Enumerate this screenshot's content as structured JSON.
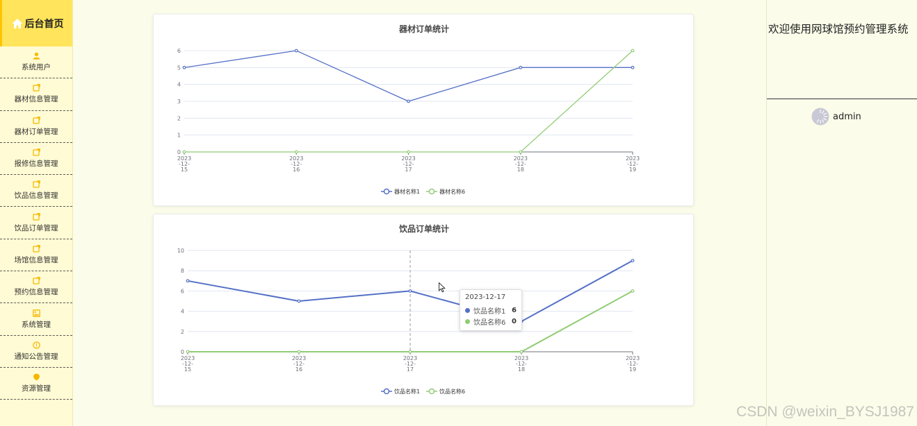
{
  "sidebar": {
    "home_label": "后台首页",
    "items": [
      {
        "label": "系统用户",
        "icon": "user-icon"
      },
      {
        "label": "器材信息管理",
        "icon": "edit-icon"
      },
      {
        "label": "器材订单管理",
        "icon": "edit-icon"
      },
      {
        "label": "报修信息管理",
        "icon": "edit-icon"
      },
      {
        "label": "饮品信息管理",
        "icon": "edit-icon"
      },
      {
        "label": "饮品订单管理",
        "icon": "edit-icon"
      },
      {
        "label": "场馆信息管理",
        "icon": "edit-icon"
      },
      {
        "label": "预约信息管理",
        "icon": "edit-icon"
      },
      {
        "label": "系统管理",
        "icon": "picture-icon"
      },
      {
        "label": "通知公告管理",
        "icon": "info-icon"
      },
      {
        "label": "资源管理",
        "icon": "location-icon"
      }
    ]
  },
  "right_panel": {
    "welcome": "欢迎使用网球馆预约管理系统",
    "username": "admin"
  },
  "colors": {
    "series1": "#5470c6",
    "series2": "#91cc75",
    "sidebar_bg": "#fffbd4",
    "home_bg": "#ffe45c",
    "icon_accent": "#f5b800"
  },
  "tooltip": {
    "date": "2023-12-17",
    "rows": [
      {
        "name": "饮品名称1",
        "value": "6"
      },
      {
        "name": "饮品名称6",
        "value": "0"
      }
    ]
  },
  "watermark": "CSDN @weixin_BYSJ1987",
  "chart_data": [
    {
      "type": "line",
      "title": "器材订单统计",
      "categories": [
        "2023-12-15",
        "2023-12-16",
        "2023-12-17",
        "2023-12-18",
        "2023-12-19"
      ],
      "series": [
        {
          "name": "器材名称1",
          "values": [
            5,
            6,
            3,
            5,
            5
          ]
        },
        {
          "name": "器材名称6",
          "values": [
            0,
            0,
            0,
            0,
            6
          ]
        }
      ],
      "ylim": [
        0,
        6
      ],
      "yticks": [
        0,
        1,
        2,
        3,
        4,
        5,
        6
      ],
      "legend": "bottom",
      "grid": true
    },
    {
      "type": "line",
      "title": "饮品订单统计",
      "categories": [
        "2023-12-15",
        "2023-12-16",
        "2023-12-17",
        "2023-12-18",
        "2023-12-19"
      ],
      "series": [
        {
          "name": "饮品名称1",
          "values": [
            7,
            5,
            6,
            3,
            9
          ]
        },
        {
          "name": "饮品名称6",
          "values": [
            0,
            0,
            0,
            0,
            6
          ]
        }
      ],
      "ylim": [
        0,
        10
      ],
      "yticks": [
        0,
        2,
        4,
        6,
        8,
        10
      ],
      "legend": "bottom",
      "grid": true
    }
  ]
}
